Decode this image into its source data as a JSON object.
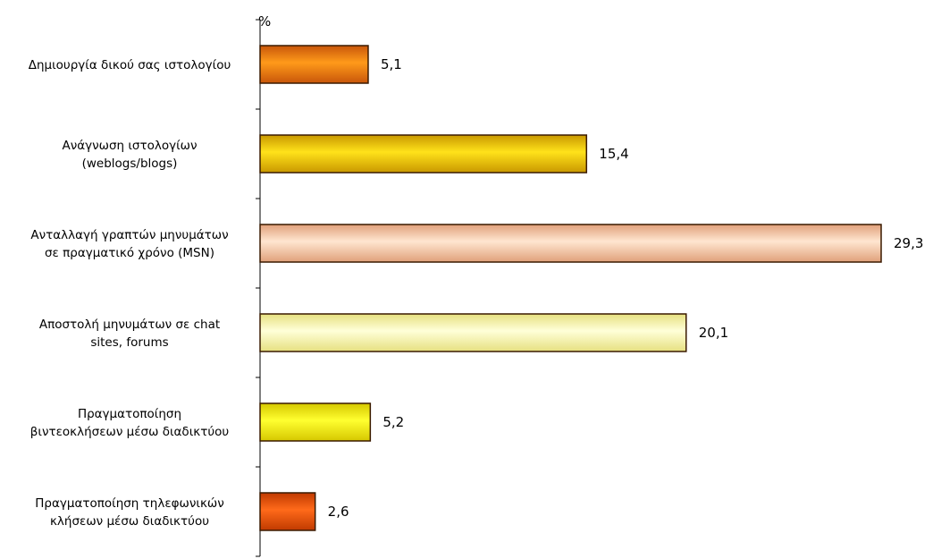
{
  "chart_data": {
    "type": "bar",
    "orientation": "horizontal",
    "unit": "%",
    "categories": [
      [
        "Δημιουργία δικού σας ιστολογίου"
      ],
      [
        "Ανάγνωση  ιστολογίων",
        "(weblogs/blogs)"
      ],
      [
        "Ανταλλαγή γραπτών μηνυμάτων",
        "σε πραγματικό χρόνο (MSN)"
      ],
      [
        "Αποστολή μηνυμάτων σε chat",
        "sites, forums"
      ],
      [
        "Πραγματοποίηση",
        "βιντεοκλήσεων μέσω διαδικτύου"
      ],
      [
        "Πραγματοποίηση τηλεφωνικών",
        "κλήσεων μέσω διαδικτύου"
      ]
    ],
    "values": [
      5.1,
      15.4,
      29.3,
      20.1,
      5.2,
      2.6
    ],
    "value_labels": [
      "5,1",
      "15,4",
      "29,3",
      "20,1",
      "5,2",
      "2,6"
    ],
    "bar_colors": [
      [
        "#c8560a",
        "#ff9a1a",
        "#c8560a"
      ],
      [
        "#c99800",
        "#ffe21a",
        "#c99800"
      ],
      [
        "#e0a07a",
        "#ffe6d0",
        "#e0a07a"
      ],
      [
        "#e6e080",
        "#ffffd8",
        "#e6e080"
      ],
      [
        "#d6c800",
        "#ffff30",
        "#d6c800"
      ],
      [
        "#c03a00",
        "#ff6a1a",
        "#c03a00"
      ]
    ],
    "xlim": [
      0,
      29.3
    ],
    "grid": false,
    "legend": "none"
  }
}
